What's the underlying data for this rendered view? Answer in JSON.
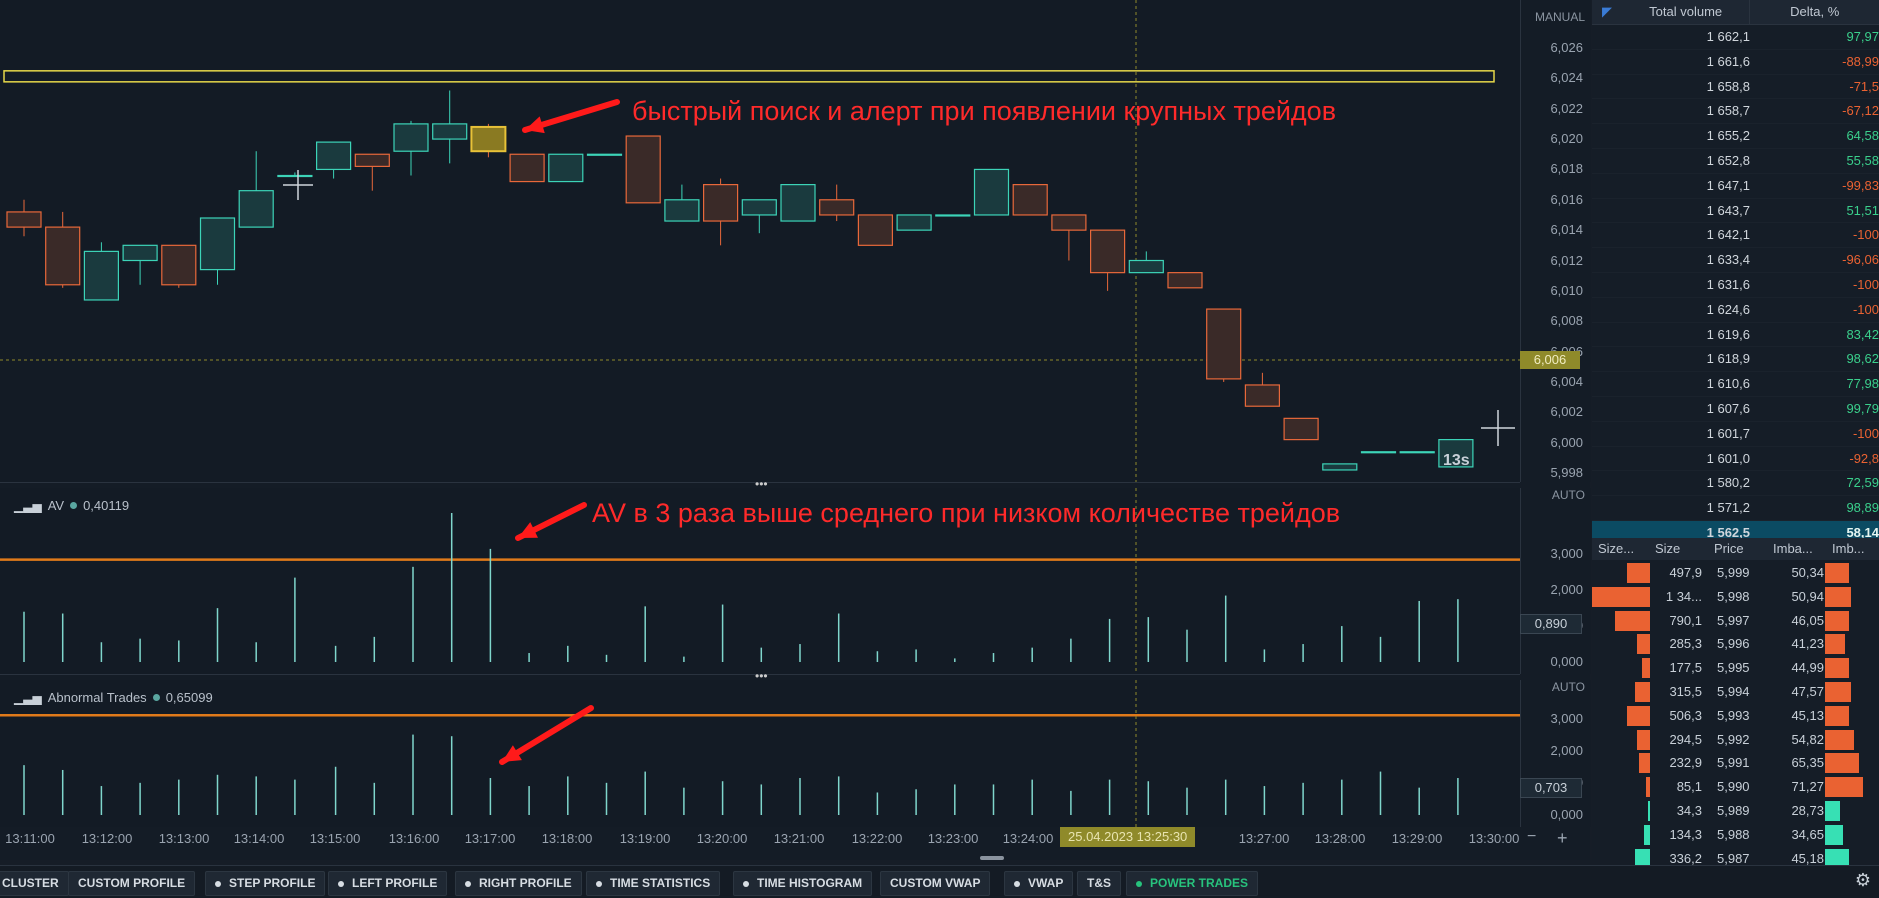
{
  "main_axis": {
    "mode": "MANUAL",
    "ticks": [
      "6,026",
      "6,024",
      "6,022",
      "6,020",
      "6,018",
      "6,016",
      "6,014",
      "6,012",
      "6,010",
      "6,008",
      "6,006",
      "6,004",
      "6,002",
      "6,000",
      "5,998"
    ],
    "current_price": "6,006"
  },
  "candles": [
    {
      "o": 6.0152,
      "h": 6.016,
      "l": 6.0136,
      "c": 6.0142
    },
    {
      "o": 6.0142,
      "h": 6.0152,
      "l": 6.0102,
      "c": 6.0104
    },
    {
      "o": 6.0094,
      "h": 6.0132,
      "l": 6.0094,
      "c": 6.0126
    },
    {
      "o": 6.012,
      "h": 6.013,
      "l": 6.0104,
      "c": 6.013
    },
    {
      "o": 6.013,
      "h": 6.013,
      "l": 6.0102,
      "c": 6.0104
    },
    {
      "o": 6.0114,
      "h": 6.0148,
      "l": 6.0104,
      "c": 6.0148
    },
    {
      "o": 6.0142,
      "h": 6.0192,
      "l": 6.0142,
      "c": 6.0166
    },
    {
      "o": 6.0176,
      "h": 6.0178,
      "l": 6.0176,
      "c": 6.0176
    },
    {
      "o": 6.018,
      "h": 6.0198,
      "l": 6.0174,
      "c": 6.0198
    },
    {
      "o": 6.019,
      "h": 6.019,
      "l": 6.0166,
      "c": 6.0182
    },
    {
      "o": 6.0192,
      "h": 6.0212,
      "l": 6.0176,
      "c": 6.021
    },
    {
      "o": 6.02,
      "h": 6.0232,
      "l": 6.0184,
      "c": 6.021
    },
    {
      "o": 6.0208,
      "h": 6.021,
      "l": 6.0188,
      "c": 6.0192
    },
    {
      "o": 6.019,
      "h": 6.019,
      "l": 6.0172,
      "c": 6.0172
    },
    {
      "o": 6.0172,
      "h": 6.019,
      "l": 6.0172,
      "c": 6.019
    },
    {
      "o": 6.019,
      "h": 6.019,
      "l": 6.019,
      "c": 6.019
    },
    {
      "o": 6.0202,
      "h": 6.0202,
      "l": 6.0158,
      "c": 6.0158
    },
    {
      "o": 6.0146,
      "h": 6.017,
      "l": 6.0146,
      "c": 6.016
    },
    {
      "o": 6.017,
      "h": 6.0174,
      "l": 6.013,
      "c": 6.0146
    },
    {
      "o": 6.015,
      "h": 6.016,
      "l": 6.0138,
      "c": 6.016
    },
    {
      "o": 6.0146,
      "h": 6.017,
      "l": 6.0146,
      "c": 6.017
    },
    {
      "o": 6.016,
      "h": 6.017,
      "l": 6.0146,
      "c": 6.015
    },
    {
      "o": 6.015,
      "h": 6.015,
      "l": 6.013,
      "c": 6.013
    },
    {
      "o": 6.014,
      "h": 6.015,
      "l": 6.014,
      "c": 6.015
    },
    {
      "o": 6.015,
      "h": 6.015,
      "l": 6.015,
      "c": 6.015
    },
    {
      "o": 6.015,
      "h": 6.018,
      "l": 6.015,
      "c": 6.018
    },
    {
      "o": 6.017,
      "h": 6.017,
      "l": 6.015,
      "c": 6.015
    },
    {
      "o": 6.015,
      "h": 6.015,
      "l": 6.012,
      "c": 6.014
    },
    {
      "o": 6.014,
      "h": 6.014,
      "l": 6.01,
      "c": 6.0112
    },
    {
      "o": 6.0112,
      "h": 6.0126,
      "l": 6.0112,
      "c": 6.012
    },
    {
      "o": 6.0112,
      "h": 6.0112,
      "l": 6.0102,
      "c": 6.0102
    },
    {
      "o": 6.0088,
      "h": 6.0088,
      "l": 6.004,
      "c": 6.0042
    },
    {
      "o": 6.0038,
      "h": 6.0046,
      "l": 6.0024,
      "c": 6.0024
    },
    {
      "o": 6.0016,
      "h": 6.0016,
      "l": 6.0002,
      "c": 6.0002
    },
    {
      "o": 5.9982,
      "h": 5.9986,
      "l": 5.9982,
      "c": 5.9986
    },
    {
      "o": 5.9994,
      "h": 5.9994,
      "l": 5.9994,
      "c": 5.9994
    },
    {
      "o": 5.9994,
      "h": 5.9994,
      "l": 5.9994,
      "c": 5.9994
    },
    {
      "o": 5.9984,
      "h": 6.0002,
      "l": 5.9984,
      "c": 6.0002
    }
  ],
  "highlighted_candle_index": 12,
  "level_line_price": 6.0241,
  "timer": "13s",
  "annotation_1": "быстрый поиск и алерт при появлении крупных трейдов",
  "annotation_2": "AV в 3 раза выше среднего при низком количестве трейдов",
  "av_indicator": {
    "name": "AV",
    "value": "0,40119",
    "mode": "AUTO",
    "ticks": [
      "3,000",
      "2,000",
      "1,000",
      "0,000"
    ],
    "current_value": "0,890",
    "threshold": 2.85,
    "bars": [
      1.4,
      1.35,
      0.55,
      0.65,
      0.6,
      1.5,
      0.55,
      2.35,
      0.45,
      0.7,
      2.65,
      4.15,
      3.15,
      0.25,
      0.45,
      0.2,
      1.55,
      0.15,
      1.6,
      0.4,
      0.5,
      1.35,
      0.3,
      0.35,
      0.1,
      0.25,
      0.4,
      0.65,
      1.2,
      1.25,
      0.9,
      1.85,
      0.35,
      0.5,
      1.0,
      0.7,
      1.7,
      1.75
    ]
  },
  "ab_indicator": {
    "name": "Abnormal Trades",
    "value": "0,65099",
    "mode": "AUTO",
    "ticks": [
      "3,000",
      "2,000",
      "1,000",
      "0,000"
    ],
    "current_value": "0,703",
    "threshold": 3.1,
    "bars": [
      1.55,
      1.4,
      0.9,
      1.0,
      1.1,
      1.25,
      1.2,
      1.1,
      1.5,
      1.0,
      2.5,
      2.45,
      1.15,
      0.9,
      1.2,
      1.0,
      1.35,
      0.85,
      1.05,
      0.95,
      1.15,
      1.2,
      0.7,
      0.8,
      0.95,
      0.95,
      1.1,
      0.75,
      1.1,
      1.05,
      0.85,
      1.1,
      0.9,
      1.0,
      1.1,
      1.35,
      0.85,
      1.15
    ]
  },
  "time_labels": [
    "13:11:00",
    "13:12:00",
    "13:13:00",
    "13:14:00",
    "13:15:00",
    "13:16:00",
    "13:17:00",
    "13:18:00",
    "13:19:00",
    "13:20:00",
    "13:21:00",
    "13:22:00",
    "13:23:00",
    "13:24:00",
    "13:27:00",
    "13:28:00",
    "13:29:00",
    "13:30:00"
  ],
  "time_cursor": "25.04.2023 13:25:30",
  "volume_table": {
    "col1": "Total volume",
    "col2": "Delta, %",
    "rows": [
      {
        "v": "1 662,1",
        "d": "97,97",
        "pos": true
      },
      {
        "v": "1 661,6",
        "d": "-88,99",
        "pos": false
      },
      {
        "v": "1 658,8",
        "d": "-71,5",
        "pos": false
      },
      {
        "v": "1 658,7",
        "d": "-67,12",
        "pos": false
      },
      {
        "v": "1 655,2",
        "d": "64,58",
        "pos": true
      },
      {
        "v": "1 652,8",
        "d": "55,58",
        "pos": true
      },
      {
        "v": "1 647,1",
        "d": "-99,83",
        "pos": false
      },
      {
        "v": "1 643,7",
        "d": "51,51",
        "pos": true
      },
      {
        "v": "1 642,1",
        "d": "-100",
        "pos": false
      },
      {
        "v": "1 633,4",
        "d": "-96,06",
        "pos": false
      },
      {
        "v": "1 631,6",
        "d": "-100",
        "pos": false
      },
      {
        "v": "1 624,6",
        "d": "-100",
        "pos": false
      },
      {
        "v": "1 619,6",
        "d": "83,42",
        "pos": true
      },
      {
        "v": "1 618,9",
        "d": "98,62",
        "pos": true
      },
      {
        "v": "1 610,6",
        "d": "77,98",
        "pos": true
      },
      {
        "v": "1 607,6",
        "d": "99,79",
        "pos": true
      },
      {
        "v": "1 601,7",
        "d": "-100",
        "pos": false
      },
      {
        "v": "1 601,0",
        "d": "-92,8",
        "pos": false
      },
      {
        "v": "1 580,2",
        "d": "72,59",
        "pos": true
      },
      {
        "v": "1 571,2",
        "d": "98,89",
        "pos": true
      },
      {
        "v": "1 562,5",
        "d": "58,14",
        "pos": true,
        "hl": true
      }
    ]
  },
  "tape": {
    "headers": [
      "Size...",
      "Size",
      "Price",
      "Imba...",
      "Imb..."
    ],
    "rows": [
      {
        "size": "497,9",
        "price": "5,999",
        "imba": "50,34",
        "bar": 0.24,
        "ibar": 0.3,
        "icolor": "#ea6232"
      },
      {
        "size": "1 34...",
        "price": "5,998",
        "imba": "50,94",
        "bar": 0.62,
        "ibar": 0.33,
        "icolor": "#ea6232"
      },
      {
        "size": "790,1",
        "price": "5,997",
        "imba": "46,05",
        "bar": 0.37,
        "ibar": 0.3,
        "icolor": "#ea6232"
      },
      {
        "size": "285,3",
        "price": "5,996",
        "imba": "41,23",
        "bar": 0.14,
        "ibar": 0.25,
        "icolor": "#ea6232"
      },
      {
        "size": "177,5",
        "price": "5,995",
        "imba": "44,99",
        "bar": 0.09,
        "ibar": 0.3,
        "icolor": "#ea6232"
      },
      {
        "size": "315,5",
        "price": "5,994",
        "imba": "47,57",
        "bar": 0.16,
        "ibar": 0.32,
        "icolor": "#ea6232"
      },
      {
        "size": "506,3",
        "price": "5,993",
        "imba": "45,13",
        "bar": 0.24,
        "ibar": 0.3,
        "icolor": "#ea6232"
      },
      {
        "size": "294,5",
        "price": "5,992",
        "imba": "54,82",
        "bar": 0.14,
        "ibar": 0.36,
        "icolor": "#ea6232"
      },
      {
        "size": "232,9",
        "price": "5,991",
        "imba": "65,35",
        "bar": 0.12,
        "ibar": 0.43,
        "icolor": "#ea6232"
      },
      {
        "size": "85,1",
        "price": "5,990",
        "imba": "71,27",
        "bar": 0.04,
        "ibar": 0.47,
        "icolor": "#ea6232"
      },
      {
        "size": "34,3",
        "price": "5,989",
        "imba": "28,73",
        "bar": 0.02,
        "ibar": 0.19,
        "icolor": "#37e0b4"
      },
      {
        "size": "134,3",
        "price": "5,988",
        "imba": "34,65",
        "bar": 0.06,
        "ibar": 0.23,
        "icolor": "#37e0b4"
      },
      {
        "size": "336,2",
        "price": "5,987",
        "imba": "45,18",
        "bar": 0.16,
        "ibar": 0.3,
        "icolor": "#37e0b4"
      }
    ]
  },
  "buttons": [
    {
      "label": "CLUSTER",
      "dot": false
    },
    {
      "label": "CUSTOM PROFILE",
      "dot": false
    },
    {
      "label": "STEP PROFILE",
      "dot": true
    },
    {
      "label": "LEFT PROFILE",
      "dot": true
    },
    {
      "label": "RIGHT PROFILE",
      "dot": true
    },
    {
      "label": "TIME STATISTICS",
      "dot": true
    },
    {
      "label": "TIME HISTOGRAM",
      "dot": true
    },
    {
      "label": "CUSTOM VWAP",
      "dot": false
    },
    {
      "label": "VWAP",
      "dot": true
    },
    {
      "label": "T&S",
      "dot": false
    },
    {
      "label": "POWER TRADES",
      "dot": true,
      "green": true
    }
  ],
  "colors": {
    "bull": "#3cd4b8",
    "bear": "#e8683a",
    "level": "#e6d84a",
    "accent": "#0b4b63"
  }
}
